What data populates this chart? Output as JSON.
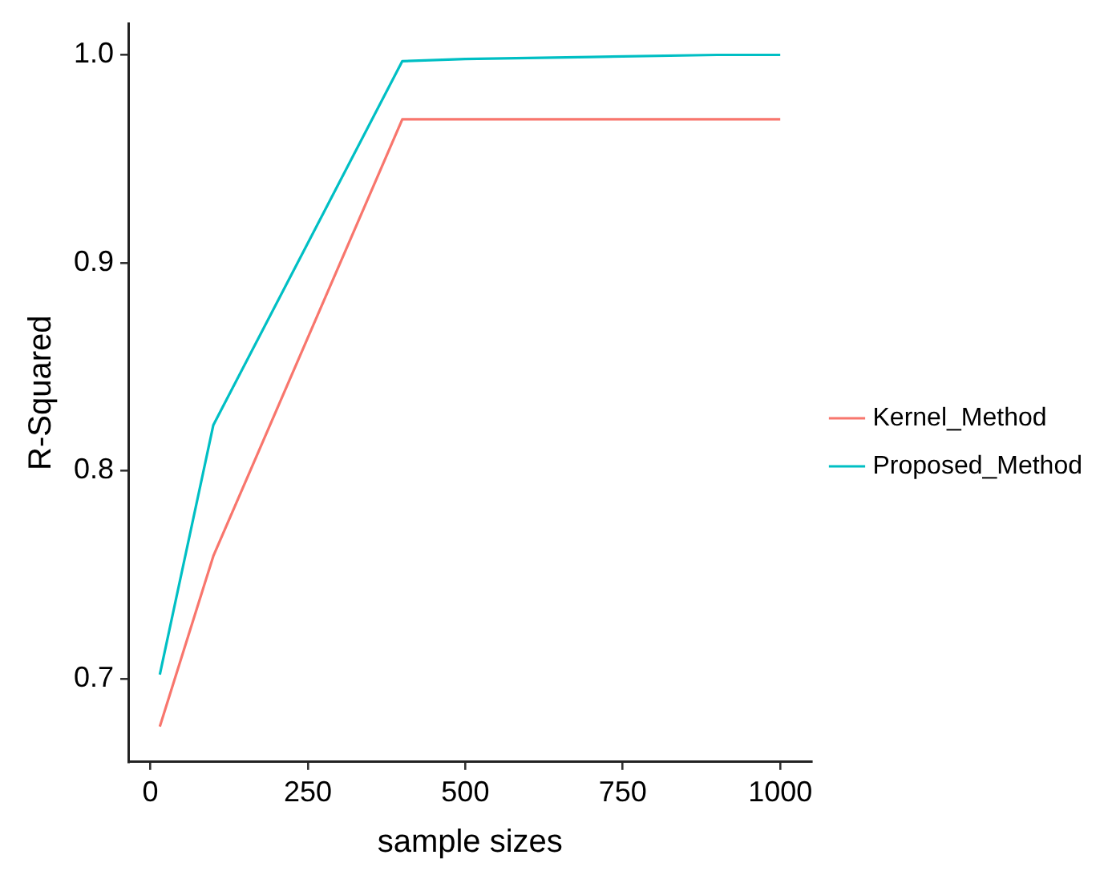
{
  "chart_data": {
    "type": "line",
    "xlabel": "sample sizes",
    "ylabel": "R-Squared",
    "xlim": [
      -35,
      1050
    ],
    "xticks": [
      0,
      250,
      500,
      750,
      1000
    ],
    "ylim": [
      0.66,
      1.015
    ],
    "yticks": [
      0.7,
      0.8,
      0.9,
      {
        "value": 1,
        "label": "1.0"
      }
    ],
    "grid": false,
    "legend": "right",
    "marker": "none",
    "line_style": "solid",
    "series": [
      {
        "name": "Kernel_Method",
        "color": "#f8766d",
        "x": [
          15,
          100,
          400,
          500,
          700,
          900,
          1000
        ],
        "values": [
          0.677,
          0.759,
          0.969,
          0.969,
          0.969,
          0.969,
          0.969
        ]
      },
      {
        "name": "Proposed_Method",
        "color": "#00bfc4",
        "x": [
          15,
          100,
          400,
          500,
          700,
          900,
          1000
        ],
        "values": [
          0.702,
          0.822,
          0.997,
          0.998,
          0.999,
          1.0,
          1.0
        ]
      }
    ]
  }
}
